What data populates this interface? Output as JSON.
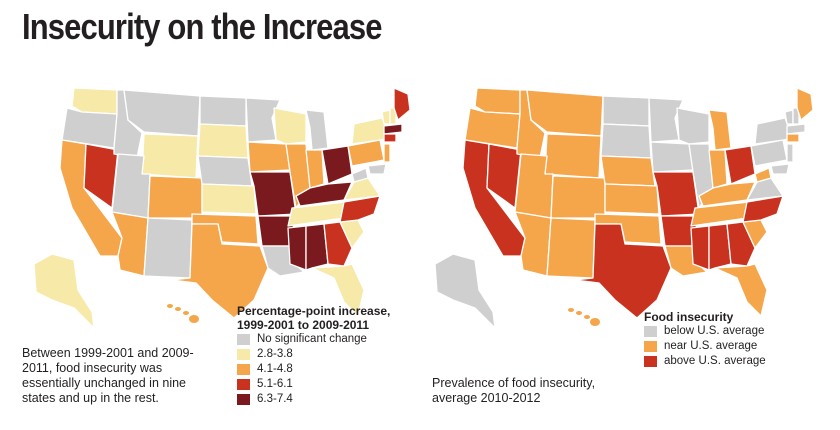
{
  "title": "Insecurity on the Increase",
  "colors": {
    "gray": "#cfcfcf",
    "pale_yellow": "#f7e9a8",
    "orange": "#f5a54a",
    "red": "#c9321e",
    "dark_red": "#7b1a1e",
    "text": "#231f20"
  },
  "left_map": {
    "legend_title_line1": "Percentage-point increase,",
    "legend_title_line2": "1999-2001 to 2009-2011",
    "legend_items": [
      {
        "label": "No significant change",
        "color": "#cfcfcf"
      },
      {
        "label": "2.8-3.8",
        "color": "#f7e9a8"
      },
      {
        "label": "4.1-4.8",
        "color": "#f5a54a"
      },
      {
        "label": "5.1-6.1",
        "color": "#c9321e"
      },
      {
        "label": "6.3-7.4",
        "color": "#7b1a1e"
      }
    ],
    "caption": "Between 1999-2001 and 2009-2011, food insecurity was essentially unchanged in nine states and up in the rest."
  },
  "right_map": {
    "legend_title": "Food insecurity",
    "legend_items": [
      {
        "label": "below U.S. average",
        "color": "#cfcfcf"
      },
      {
        "label": "near U.S. average",
        "color": "#f5a54a"
      },
      {
        "label": "above U.S. average",
        "color": "#c9321e"
      }
    ],
    "caption": "Prevalence of food insecurity, average 2010-2012"
  }
}
